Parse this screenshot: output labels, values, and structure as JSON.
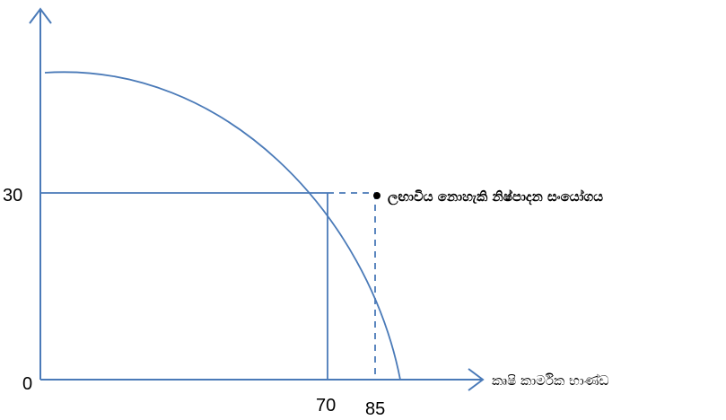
{
  "diagram": {
    "type": "production-possibility-frontier",
    "colors": {
      "axis": "#4a7ab8",
      "curve": "#4a7ab8",
      "guide": "#4a7ab8",
      "point": "#000000",
      "text": "#000000"
    },
    "y_ticks": {
      "origin": "0",
      "level": "30"
    },
    "x_ticks": {
      "attainable": "70",
      "unattainable": "85"
    },
    "x_axis_label": "කෘෂි කාර්මික භාණ්ඩ",
    "point_label": "ලඟාවිය නොහැකි  නිෂ්පාදන සංයෝගය",
    "guide_styles": {
      "attainable": "solid",
      "unattainable": "dashed"
    }
  }
}
